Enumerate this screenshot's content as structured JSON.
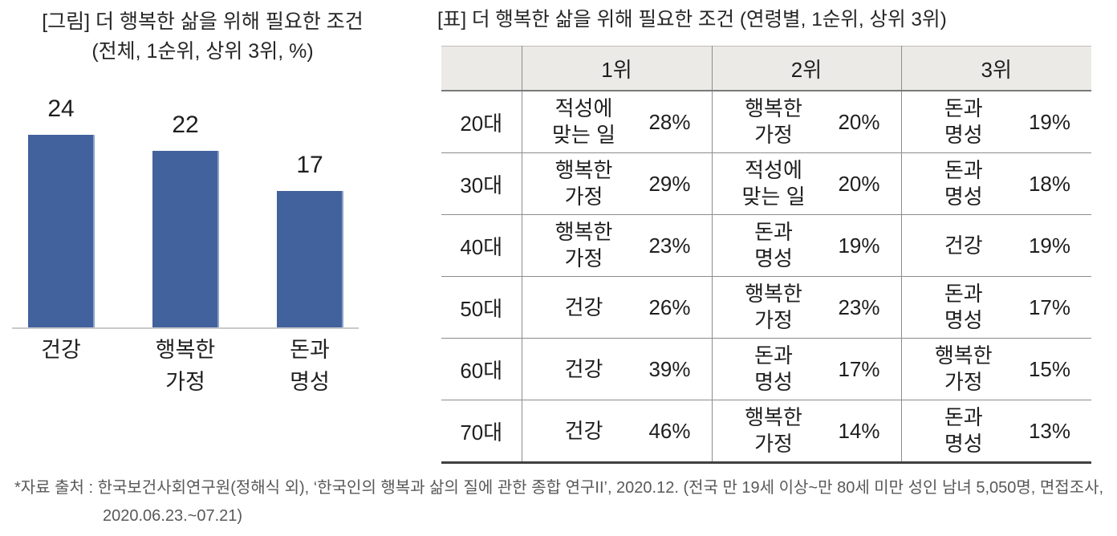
{
  "chart": {
    "title_line1": "[그림] 더 행복한 삶을 위해 필요한 조건",
    "title_line2": "(전체, 1순위, 상위 3위, %)",
    "bar_color": "#42629D",
    "bars": [
      {
        "label": "건강",
        "value": 24
      },
      {
        "label": "행복한\n가정",
        "value": 22
      },
      {
        "label": "돈과\n명성",
        "value": 17
      }
    ]
  },
  "table": {
    "title": "[표] 더 행복한 삶을 위해 필요한 조건 (연령별, 1순위, 상위 3위)",
    "columns": [
      "",
      "1위",
      "2위",
      "3위"
    ],
    "rows": [
      {
        "age": "20대",
        "ranks": [
          {
            "cond": "적성에\n맞는 일",
            "pct": "28%"
          },
          {
            "cond": "행복한\n가정",
            "pct": "20%"
          },
          {
            "cond": "돈과\n명성",
            "pct": "19%"
          }
        ]
      },
      {
        "age": "30대",
        "ranks": [
          {
            "cond": "행복한\n가정",
            "pct": "29%"
          },
          {
            "cond": "적성에\n맞는 일",
            "pct": "20%"
          },
          {
            "cond": "돈과\n명성",
            "pct": "18%"
          }
        ]
      },
      {
        "age": "40대",
        "ranks": [
          {
            "cond": "행복한\n가정",
            "pct": "23%"
          },
          {
            "cond": "돈과\n명성",
            "pct": "19%"
          },
          {
            "cond": "건강",
            "pct": "19%"
          }
        ]
      },
      {
        "age": "50대",
        "ranks": [
          {
            "cond": "건강",
            "pct": "26%"
          },
          {
            "cond": "행복한\n가정",
            "pct": "23%"
          },
          {
            "cond": "돈과\n명성",
            "pct": "17%"
          }
        ]
      },
      {
        "age": "60대",
        "ranks": [
          {
            "cond": "건강",
            "pct": "39%"
          },
          {
            "cond": "돈과\n명성",
            "pct": "17%"
          },
          {
            "cond": "행복한\n가정",
            "pct": "15%"
          }
        ]
      },
      {
        "age": "70대",
        "ranks": [
          {
            "cond": "건강",
            "pct": "46%"
          },
          {
            "cond": "행복한\n가정",
            "pct": "14%"
          },
          {
            "cond": "돈과\n명성",
            "pct": "13%"
          }
        ]
      }
    ]
  },
  "footer": {
    "line1": "*자료 출처 : 한국보건사회연구원(정해식 외), ‘한국인의 행복과 삶의 질에 관한 종합 연구II’, 2020.12. (전국 만 19세 이상~만 80세 미만 성인 남녀 5,050명, 면접조사,",
    "line2": "2020.06.23.~07.21)"
  },
  "chart_data": [
    {
      "type": "bar",
      "title": "[그림] 더 행복한 삶을 위해 필요한 조건 (전체, 1순위, 상위 3위, %)",
      "categories": [
        "건강",
        "행복한 가정",
        "돈과 명성"
      ],
      "values": [
        24,
        22,
        17
      ],
      "unit": "%",
      "xlabel": "",
      "ylabel": "",
      "ylim": [
        0,
        26
      ],
      "grid": false,
      "data_labels": true,
      "bar_color": "#42629D"
    },
    {
      "type": "table",
      "title": "[표] 더 행복한 삶을 위해 필요한 조건 (연령별, 1순위, 상위 3위)",
      "columns": [
        "",
        "1위",
        "2위",
        "3위"
      ],
      "rows": [
        [
          "20대",
          "적성에 맞는 일 28%",
          "행복한 가정 20%",
          "돈과 명성 19%"
        ],
        [
          "30대",
          "행복한 가정 29%",
          "적성에 맞는 일 20%",
          "돈과 명성 18%"
        ],
        [
          "40대",
          "행복한 가정 23%",
          "돈과 명성 19%",
          "건강 19%"
        ],
        [
          "50대",
          "건강 26%",
          "행복한 가정 23%",
          "돈과 명성 17%"
        ],
        [
          "60대",
          "건강 39%",
          "돈과 명성 17%",
          "행복한 가정 15%"
        ],
        [
          "70대",
          "건강 46%",
          "행복한 가정 14%",
          "돈과 명성 13%"
        ]
      ]
    }
  ]
}
